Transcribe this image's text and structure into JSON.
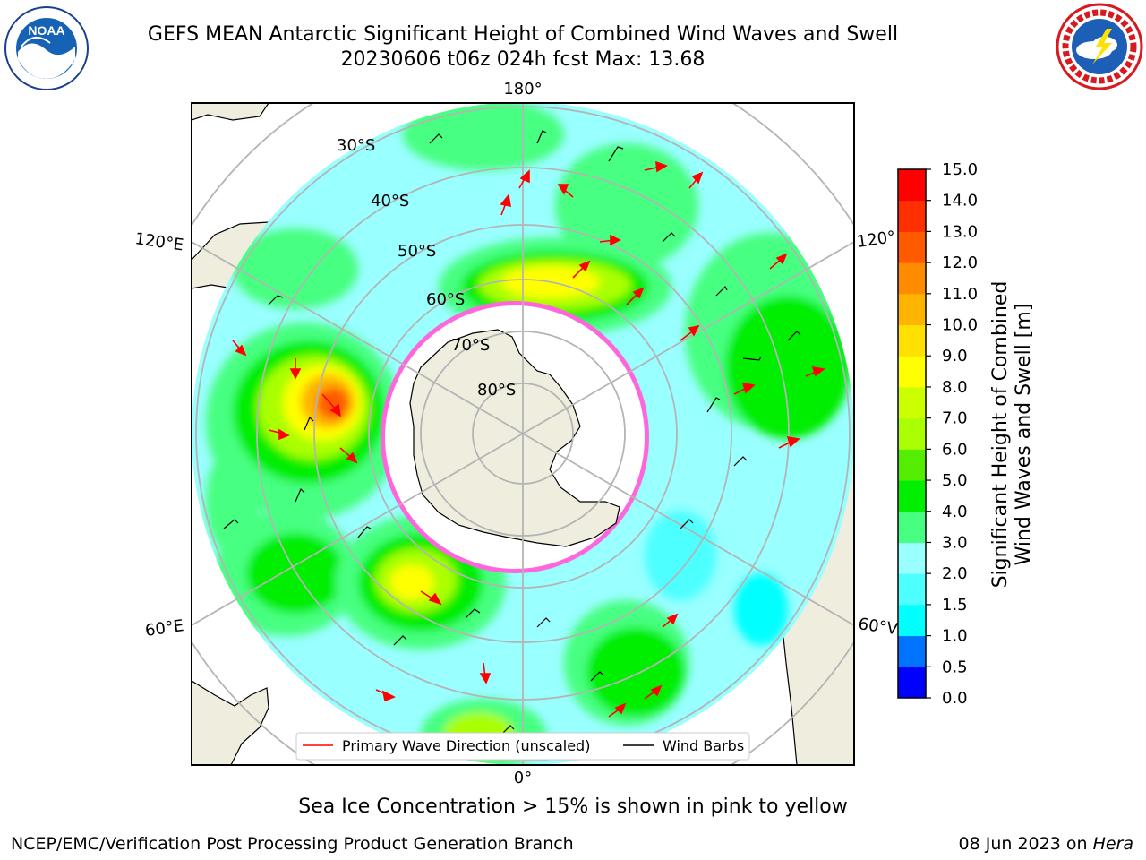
{
  "header": {
    "title_line1": "GEFS MEAN Antarctic Significant Height of Combined Wind Waves and Swell",
    "title_line2": "20230606 t06z 024h fcst   Max: 13.68"
  },
  "logos": {
    "left": {
      "name": "noaa-logo",
      "text": "NOAA"
    },
    "right": {
      "name": "nws-logo",
      "text": "NATIONAL WEATHER SERVICE"
    }
  },
  "map": {
    "projection": "south-polar-stereographic",
    "meridian_labels": {
      "top": "180°",
      "bottom": "0°",
      "left_upper": "120°E",
      "left_lower": "60°E",
      "right_upper": "120°",
      "right_lower": "60°V"
    },
    "latitude_labels": [
      "30°S",
      "40°S",
      "50°S",
      "60°S",
      "70°S",
      "80°S"
    ],
    "legend": {
      "wave": "Primary Wave Direction (unscaled)",
      "wind": "Wind Barbs"
    },
    "colors": {
      "land": "#efedde",
      "ocean_low": "#8dfdfd",
      "ice": "#ff33cc",
      "grid": "#b4b4b4"
    }
  },
  "colorbar": {
    "label_line1": "Significant Height of Combined",
    "label_line2": "Wind Waves and Swell [m]",
    "ticks": [
      "0.0",
      "0.5",
      "1.0",
      "1.5",
      "2.0",
      "3.0",
      "4.0",
      "5.0",
      "6.0",
      "7.0",
      "8.0",
      "9.0",
      "10.0",
      "11.0",
      "12.0",
      "13.0",
      "14.0",
      "15.0"
    ],
    "colors": [
      "#0000ff",
      "#0073ff",
      "#00ffff",
      "#4dffff",
      "#99ffff",
      "#47ff80",
      "#00ee00",
      "#55ee00",
      "#aaff00",
      "#ccff00",
      "#ffff00",
      "#ffe000",
      "#ffb400",
      "#ff8c00",
      "#ff5a00",
      "#ff3000",
      "#ff0000"
    ]
  },
  "caption": "Sea Ice Concentration > 15% is shown in pink to yellow",
  "footer": {
    "left": "NCEP/EMC/Verification Post Processing Product Generation Branch",
    "right_prefix": "08 Jun 2023 on ",
    "right_model": "Hera"
  }
}
